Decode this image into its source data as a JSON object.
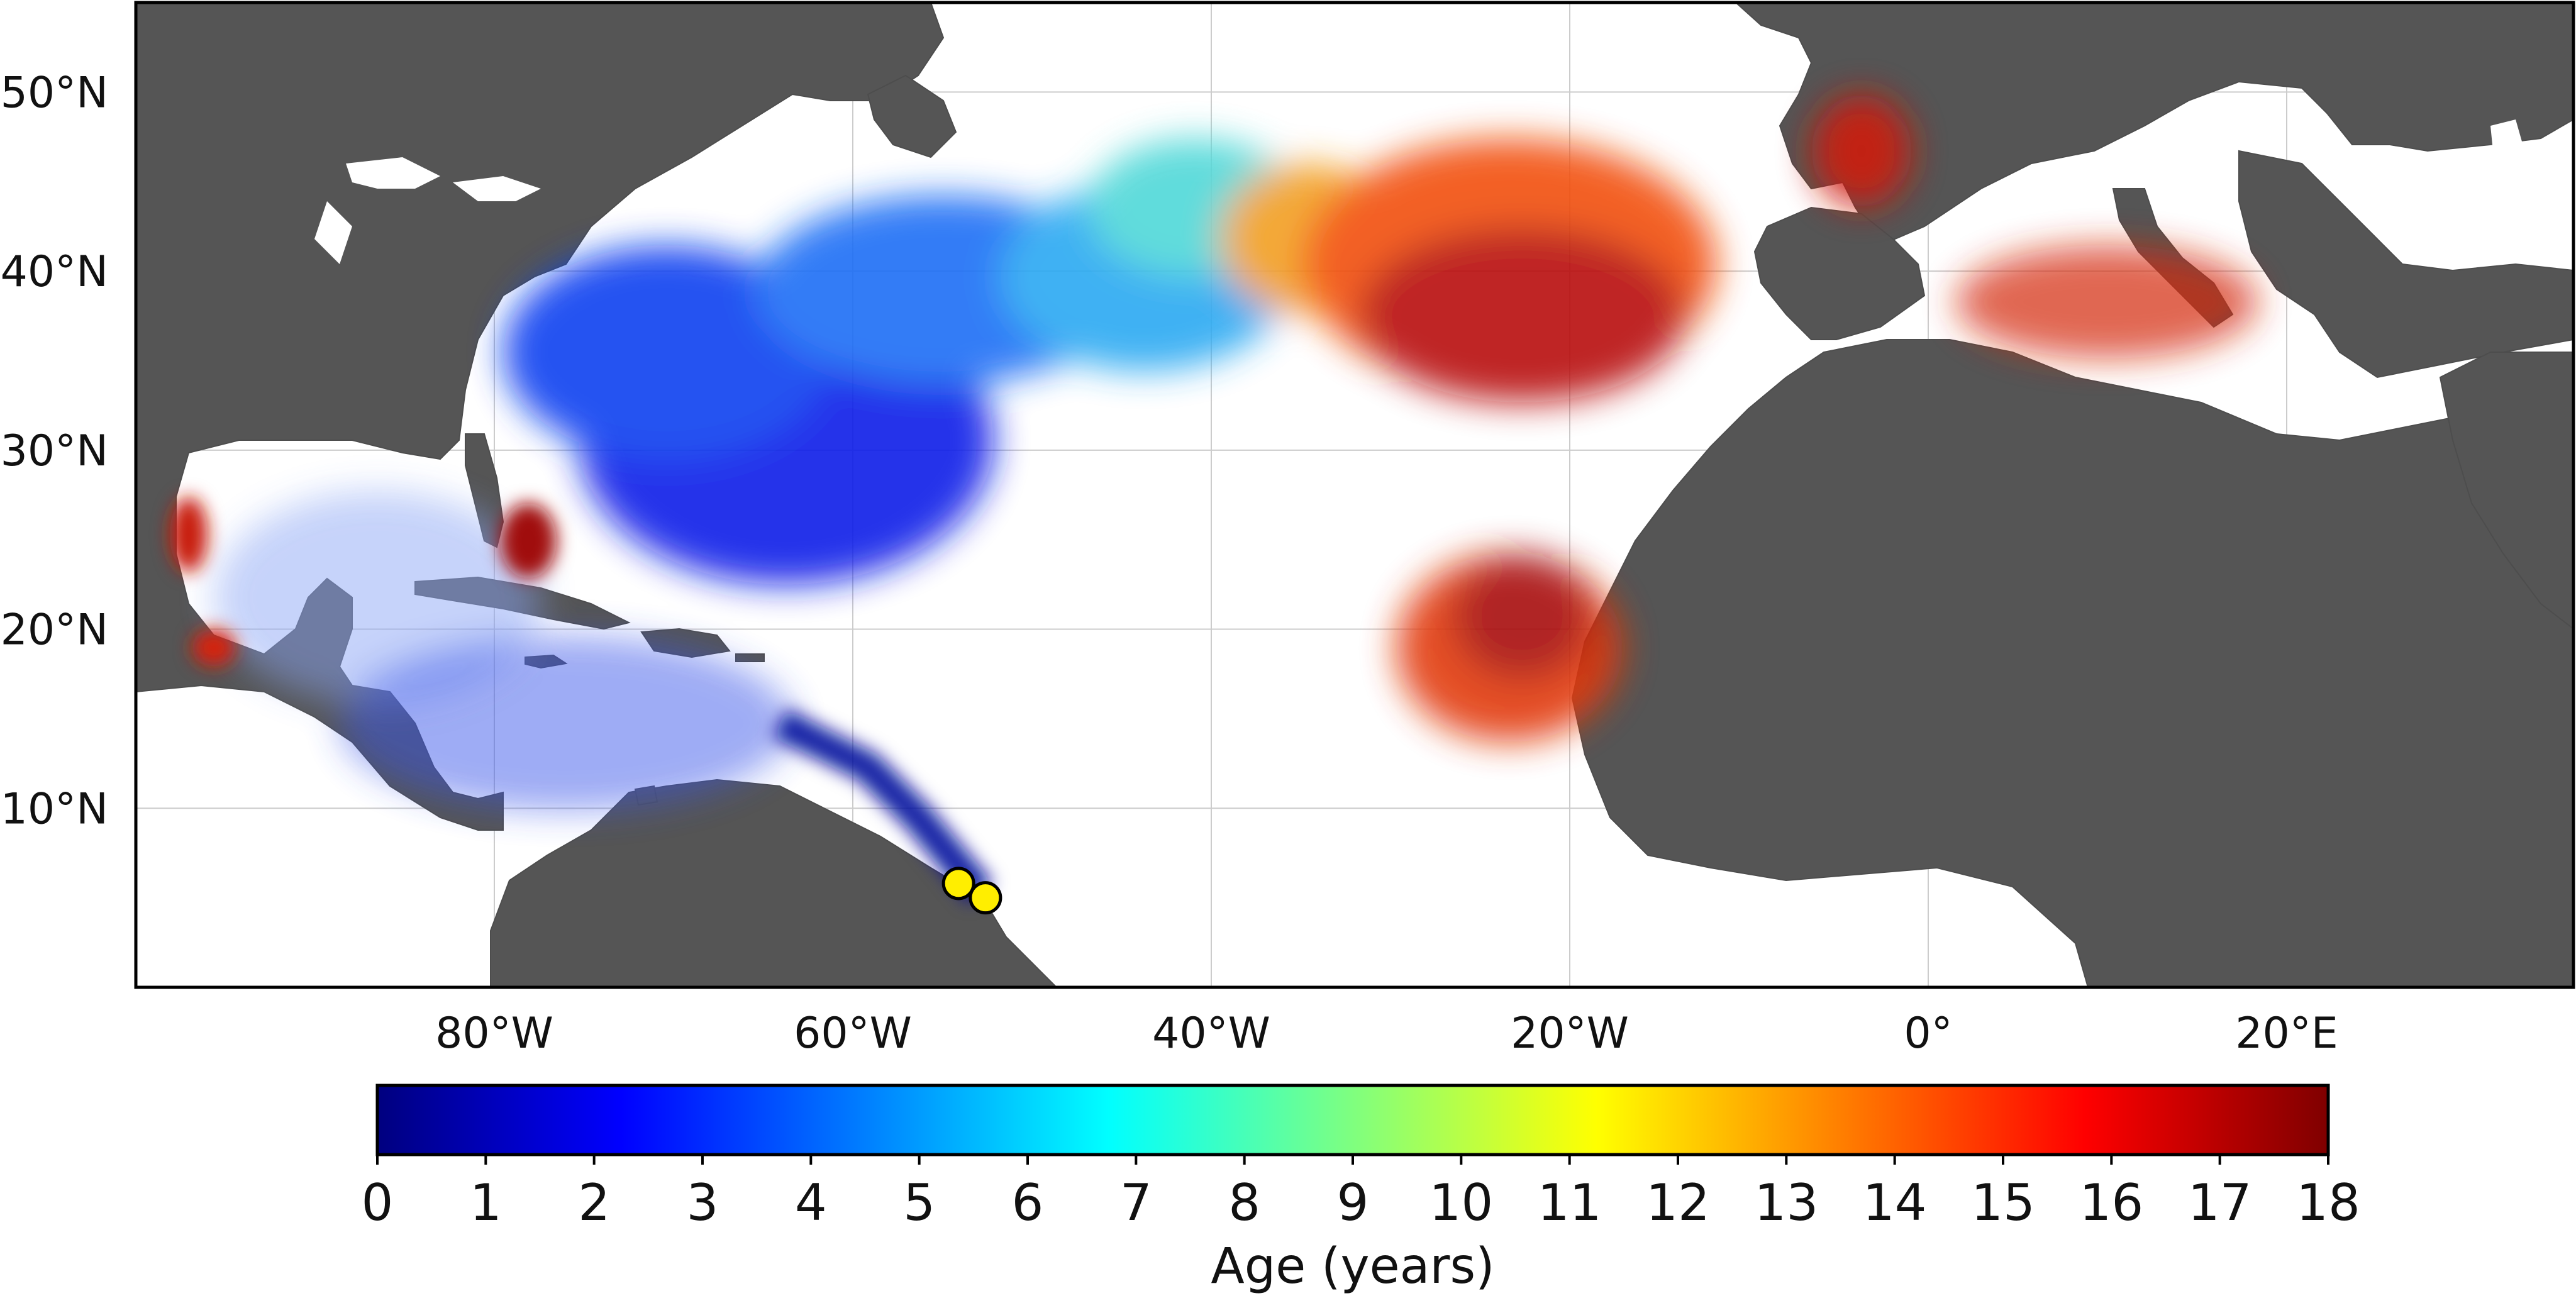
{
  "map": {
    "lat_labels": [
      {
        "value": 50,
        "text": "50°N"
      },
      {
        "value": 40,
        "text": "40°N"
      },
      {
        "value": 30,
        "text": "30°N"
      },
      {
        "value": 20,
        "text": "20°N"
      },
      {
        "value": 10,
        "text": "10°N"
      }
    ],
    "lon_labels": [
      {
        "value": -80,
        "text": "80°W"
      },
      {
        "value": -60,
        "text": "60°W"
      },
      {
        "value": -40,
        "text": "40°W"
      },
      {
        "value": -20,
        "text": "20°W"
      },
      {
        "value": 0,
        "text": "0°"
      },
      {
        "value": 20,
        "text": "20°E"
      }
    ],
    "extent": {
      "lon_min": -100,
      "lon_max": 36,
      "lat_min": 0,
      "lat_max": 55
    },
    "colors": {
      "land": "#555555",
      "ocean": "#ffffff",
      "grid": "#cccccc",
      "release_marker": "#ffee00"
    },
    "release_markers": [
      {
        "lon": -54.1,
        "lat": 5.8
      },
      {
        "lon": -52.6,
        "lat": 5.0
      }
    ]
  },
  "colorbar": {
    "label": "Age (years)",
    "min": 0,
    "max": 18,
    "ticks": [
      "0",
      "1",
      "2",
      "3",
      "4",
      "5",
      "6",
      "7",
      "8",
      "9",
      "10",
      "11",
      "12",
      "13",
      "14",
      "15",
      "16",
      "17",
      "18"
    ],
    "colormap": "jet",
    "colors": [
      "#00007f",
      "#0000ff",
      "#007fff",
      "#00ffff",
      "#7fff7f",
      "#ffff00",
      "#ff7f00",
      "#ff0000",
      "#7f0000"
    ]
  }
}
